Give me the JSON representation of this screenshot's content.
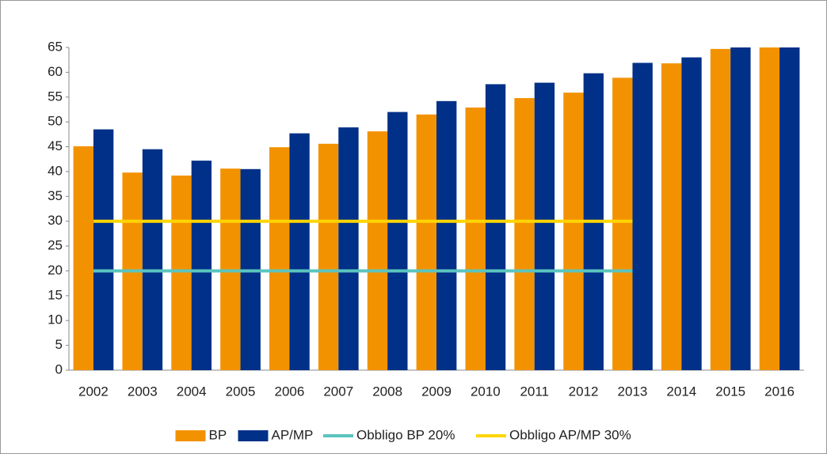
{
  "chart_data": {
    "type": "bar",
    "categories": [
      "2002",
      "2003",
      "2004",
      "2005",
      "2006",
      "2007",
      "2008",
      "2009",
      "2010",
      "2011",
      "2012",
      "2013",
      "2014",
      "2015",
      "2016"
    ],
    "series": [
      {
        "name": "BP",
        "color": "#f39200",
        "values": [
          45.1,
          39.8,
          39.2,
          40.6,
          44.9,
          45.6,
          48.1,
          51.5,
          52.9,
          54.8,
          55.9,
          58.9,
          61.8,
          64.7,
          65
        ]
      },
      {
        "name": "AP/MP",
        "color": "#003087",
        "values": [
          48.5,
          44.5,
          42.2,
          40.5,
          47.7,
          48.9,
          52,
          54.2,
          57.6,
          57.9,
          59.8,
          61.9,
          63,
          65,
          65
        ]
      },
      {
        "name": "Obbligo BP 20%",
        "type": "line",
        "color": "#5bc4bf",
        "values": [
          20,
          20,
          20,
          20,
          20,
          20,
          20,
          20,
          20,
          20,
          20,
          20,
          null,
          null,
          null
        ]
      },
      {
        "name": "Obbligo AP/MP 30%",
        "type": "line",
        "color": "#ffd500",
        "values": [
          30,
          30,
          30,
          30,
          30,
          30,
          30,
          30,
          30,
          30,
          30,
          30,
          null,
          null,
          null
        ]
      }
    ],
    "ylim": [
      0,
      65
    ],
    "yticks": [
      0,
      5,
      10,
      15,
      20,
      25,
      30,
      35,
      40,
      45,
      50,
      55,
      60,
      65
    ],
    "grid": false,
    "legend": "bottom"
  }
}
